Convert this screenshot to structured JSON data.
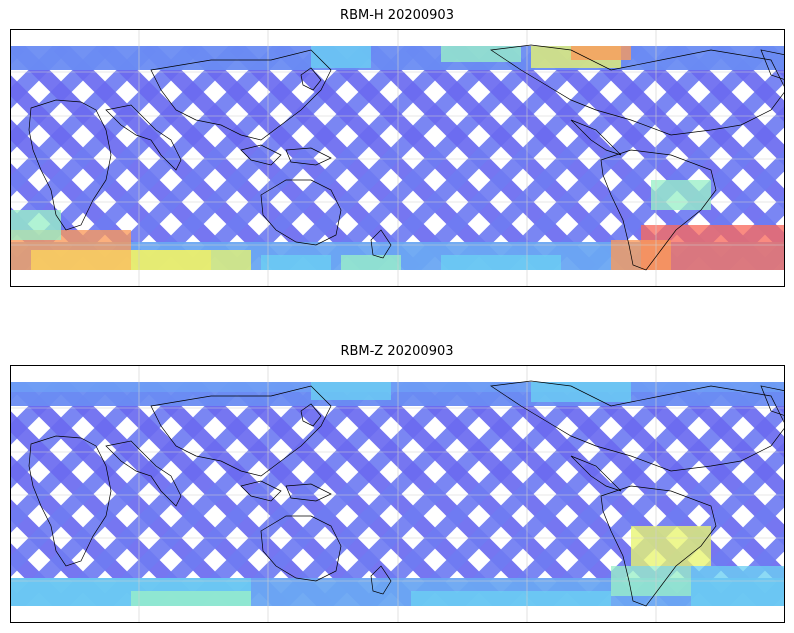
{
  "panels": [
    {
      "title": "RBM-H 20200903",
      "swath_base_color": "#6a6af0",
      "colormap": [
        "#5f5ff5",
        "#6ea0f5",
        "#6ccff2",
        "#9af0c8",
        "#e8f570",
        "#fcd45e",
        "#fb9a5a",
        "#f86a5e"
      ]
    },
    {
      "title": "RBM-Z 20200903",
      "swath_base_color": "#6a6af0",
      "colormap": [
        "#5f5ff5",
        "#6ea0f5",
        "#6ccff2",
        "#9af0c8",
        "#e8f570",
        "#fcd45e",
        "#fb9a5a",
        "#f86a5e"
      ]
    }
  ],
  "map": {
    "projection": "equirectangular",
    "gridlines": true,
    "coastline_color": "#000000",
    "land_fill": "none"
  }
}
